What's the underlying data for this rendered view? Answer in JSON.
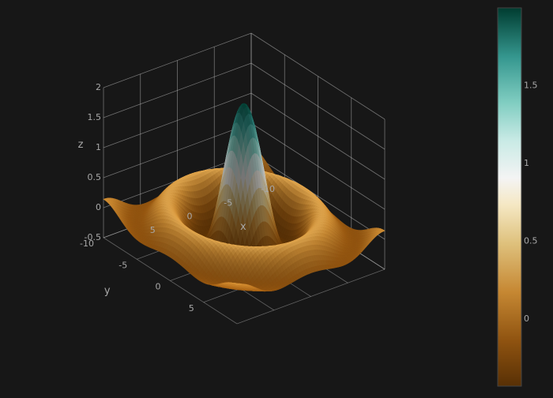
{
  "background_color": "#171717",
  "grid_color": "#bdbdbd",
  "tick_color": "#a8a8a8",
  "chart_data": {
    "type": "surface3d",
    "function": "sinc-like radial ripple: z = 2*sin(r)/r, r = sqrt(x^2 + y^2)",
    "x_range": [
      -10,
      10
    ],
    "y_range": [
      -10,
      10
    ],
    "z_range": [
      -0.5,
      2
    ],
    "xlabel": "x",
    "ylabel": "y",
    "zlabel": "z",
    "x_ticks": [
      "-10",
      "-5",
      "0",
      "5"
    ],
    "y_ticks": [
      "-10",
      "-5",
      "0",
      "5"
    ],
    "z_ticks": [
      "-0.5",
      "0",
      "0.5",
      "1",
      "1.5",
      "2"
    ],
    "peak_z": 2,
    "colorscale": "BrBG",
    "colorbar": {
      "ticks": [
        "0",
        "0.5",
        "1",
        "1.5"
      ],
      "range": [
        -0.43,
        2
      ],
      "stops": [
        {
          "t": 0.0,
          "color": "#583005"
        },
        {
          "t": 0.12,
          "color": "#8f5310"
        },
        {
          "t": 0.25,
          "color": "#c68833"
        },
        {
          "t": 0.38,
          "color": "#dfc27e"
        },
        {
          "t": 0.48,
          "color": "#f5e8c4"
        },
        {
          "t": 0.55,
          "color": "#f4f4f4"
        },
        {
          "t": 0.65,
          "color": "#c8eae5"
        },
        {
          "t": 0.75,
          "color": "#80cdc1"
        },
        {
          "t": 0.87,
          "color": "#35978f"
        },
        {
          "t": 1.0,
          "color": "#003c30"
        }
      ]
    }
  }
}
